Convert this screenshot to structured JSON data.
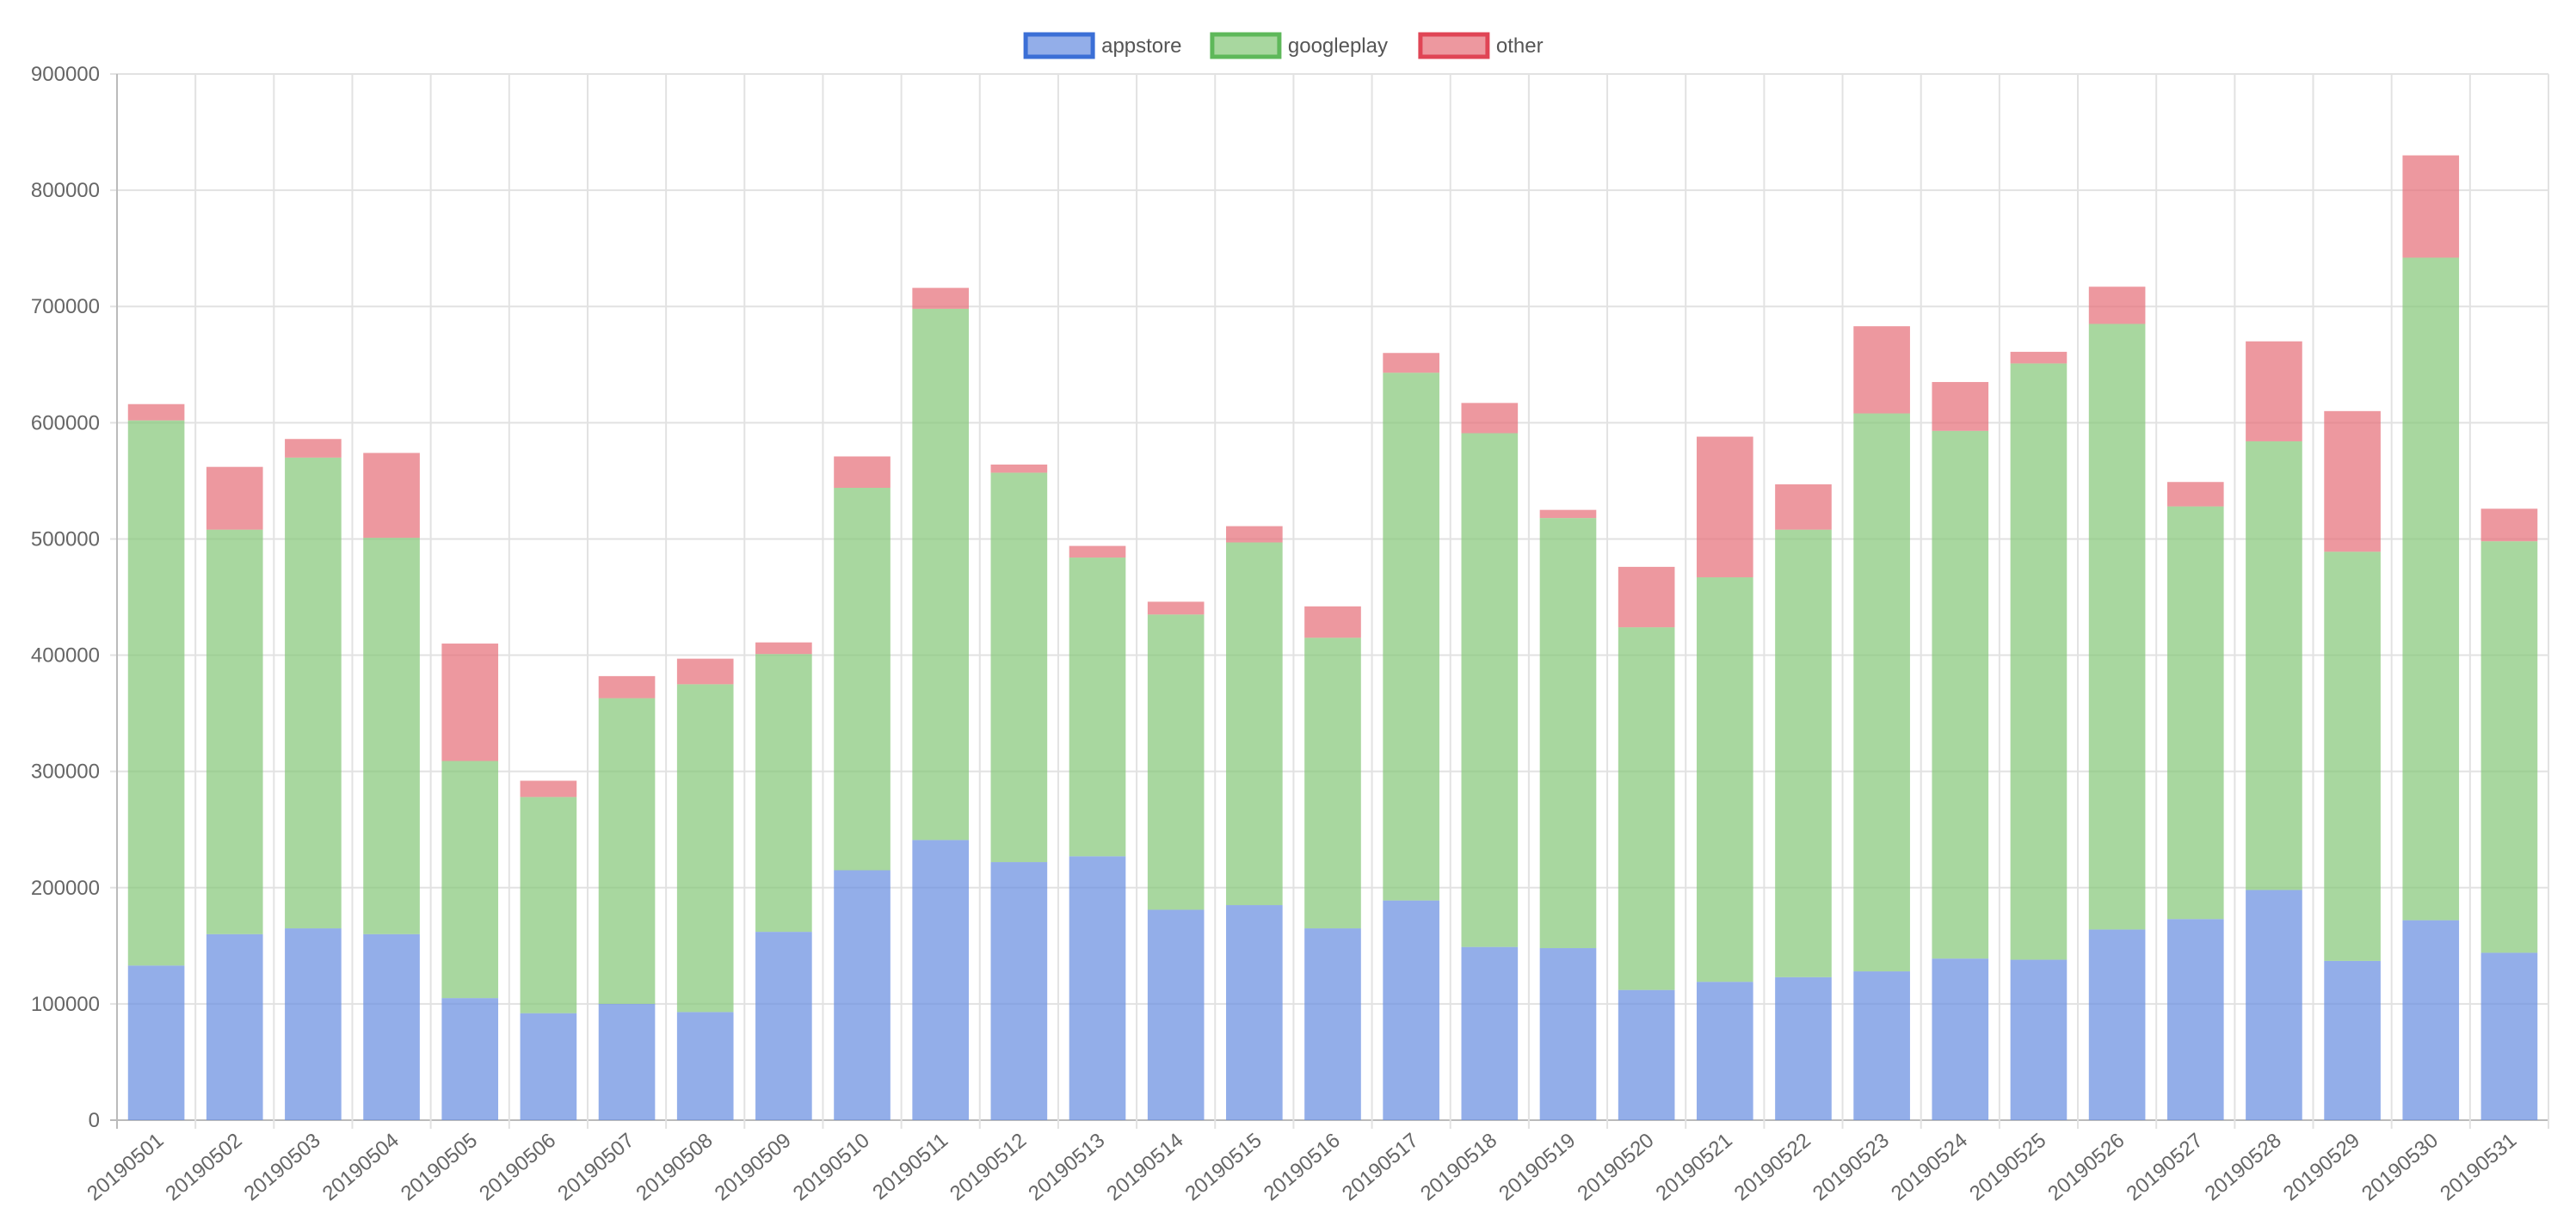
{
  "chart_data": {
    "type": "bar",
    "stacked": true,
    "categories": [
      "20190501",
      "20190502",
      "20190503",
      "20190504",
      "20190505",
      "20190506",
      "20190507",
      "20190508",
      "20190509",
      "20190510",
      "20190511",
      "20190512",
      "20190513",
      "20190514",
      "20190515",
      "20190516",
      "20190517",
      "20190518",
      "20190519",
      "20190520",
      "20190521",
      "20190522",
      "20190523",
      "20190524",
      "20190525",
      "20190526",
      "20190527",
      "20190528",
      "20190529",
      "20190530",
      "20190531"
    ],
    "series": [
      {
        "name": "appstore",
        "color": "#6a8fe0",
        "border": "#3b6fd6",
        "values": [
          133000,
          160000,
          165000,
          160000,
          105000,
          92000,
          100000,
          93000,
          162000,
          215000,
          241000,
          222000,
          227000,
          181000,
          185000,
          165000,
          189000,
          149000,
          148000,
          112000,
          119000,
          123000,
          128000,
          139000,
          138000,
          164000,
          173000,
          198000,
          137000,
          172000,
          144000
        ]
      },
      {
        "name": "googleplay",
        "color": "#86c77a",
        "border": "#5eb85a",
        "values": [
          469000,
          348000,
          405000,
          341000,
          204000,
          186000,
          263000,
          282000,
          239000,
          329000,
          457000,
          335000,
          257000,
          254000,
          312000,
          250000,
          454000,
          442000,
          370000,
          312000,
          348000,
          385000,
          480000,
          454000,
          513000,
          521000,
          355000,
          386000,
          352000,
          570000,
          354000
        ]
      },
      {
        "name": "other",
        "color": "#e6707a",
        "border": "#e04555",
        "values": [
          14000,
          54000,
          16000,
          73000,
          101000,
          14000,
          19000,
          22000,
          10000,
          27000,
          18000,
          7000,
          10000,
          11000,
          14000,
          27000,
          17000,
          26000,
          7000,
          52000,
          121000,
          39000,
          75000,
          42000,
          10000,
          32000,
          21000,
          86000,
          121000,
          88000,
          28000
        ]
      }
    ],
    "ylim": [
      0,
      900000
    ],
    "yticks": [
      0,
      100000,
      200000,
      300000,
      400000,
      500000,
      600000,
      700000,
      800000,
      900000
    ],
    "grid": true,
    "legend_position": "top-center",
    "title": "",
    "xlabel": "",
    "ylabel": ""
  }
}
